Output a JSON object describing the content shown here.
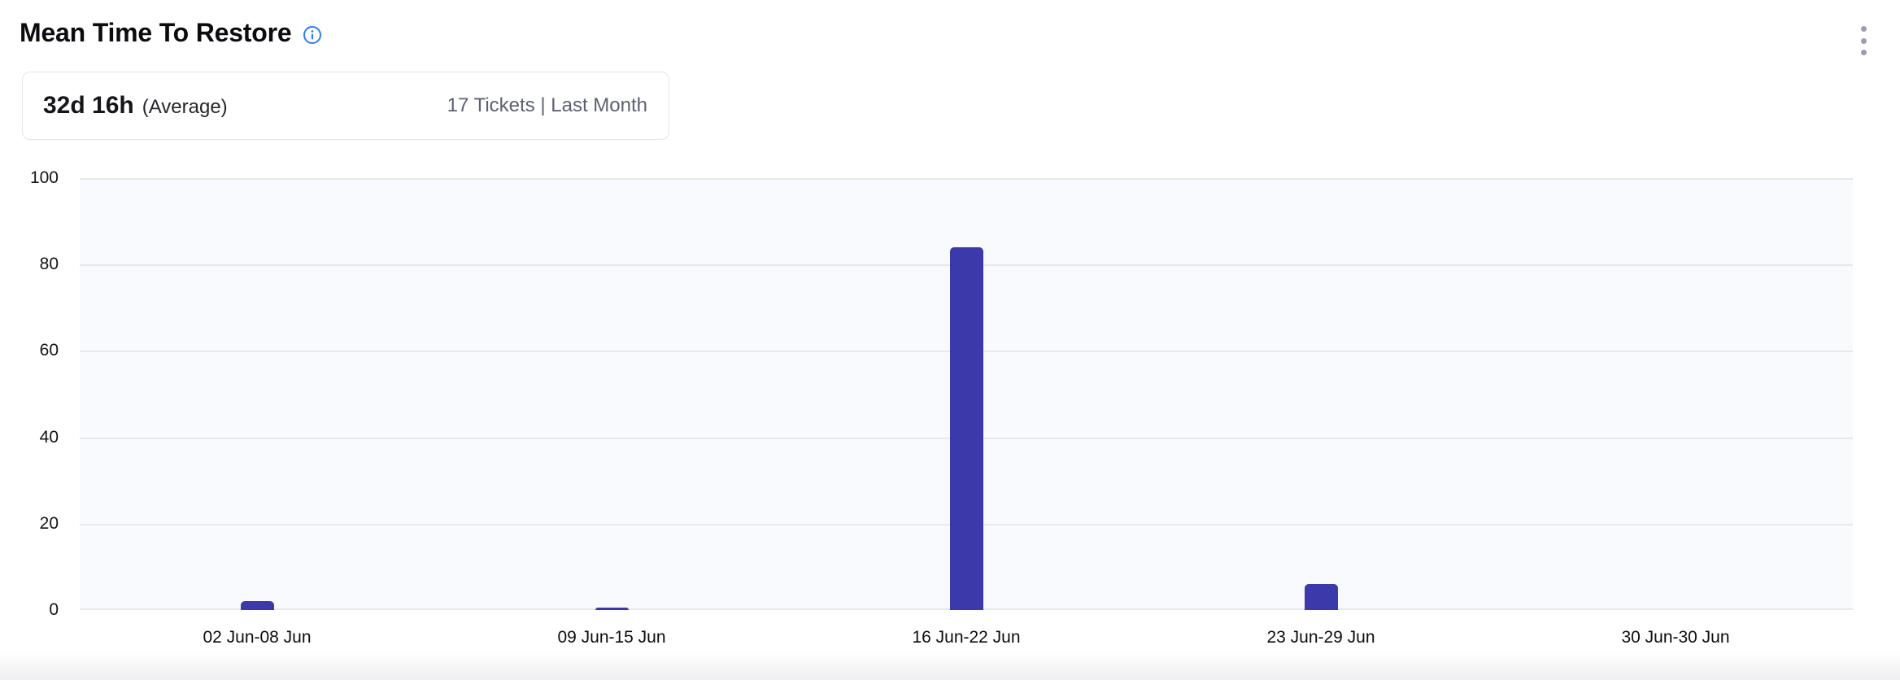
{
  "header": {
    "title": "Mean Time To Restore"
  },
  "summary": {
    "value": "32d 16h",
    "suffix": "(Average)",
    "meta": "17 Tickets | Last Month"
  },
  "icons": {
    "info": "info-icon",
    "menu": "kebab-menu-icon"
  },
  "colors": {
    "bar": "#3c39aa",
    "plot_background": "#f9fafd",
    "gridline": "#e7e8ec",
    "info_blue": "#2e7df0",
    "menu_gray": "#9b9eb0",
    "meta_text": "#5d6072"
  },
  "chart_data": {
    "type": "bar",
    "title": "Mean Time To Restore",
    "categories": [
      "02 Jun-08 Jun",
      "09 Jun-15 Jun",
      "16 Jun-22 Jun",
      "23 Jun-29 Jun",
      "30 Jun-30 Jun"
    ],
    "values": [
      2,
      0.6,
      84,
      6,
      0
    ],
    "xlabel": "",
    "ylabel": "",
    "ylim": [
      0,
      100
    ],
    "yticks": [
      0,
      20,
      40,
      60,
      80,
      100
    ],
    "grid": true,
    "legend": "none",
    "bar_color": "#3c39aa"
  }
}
